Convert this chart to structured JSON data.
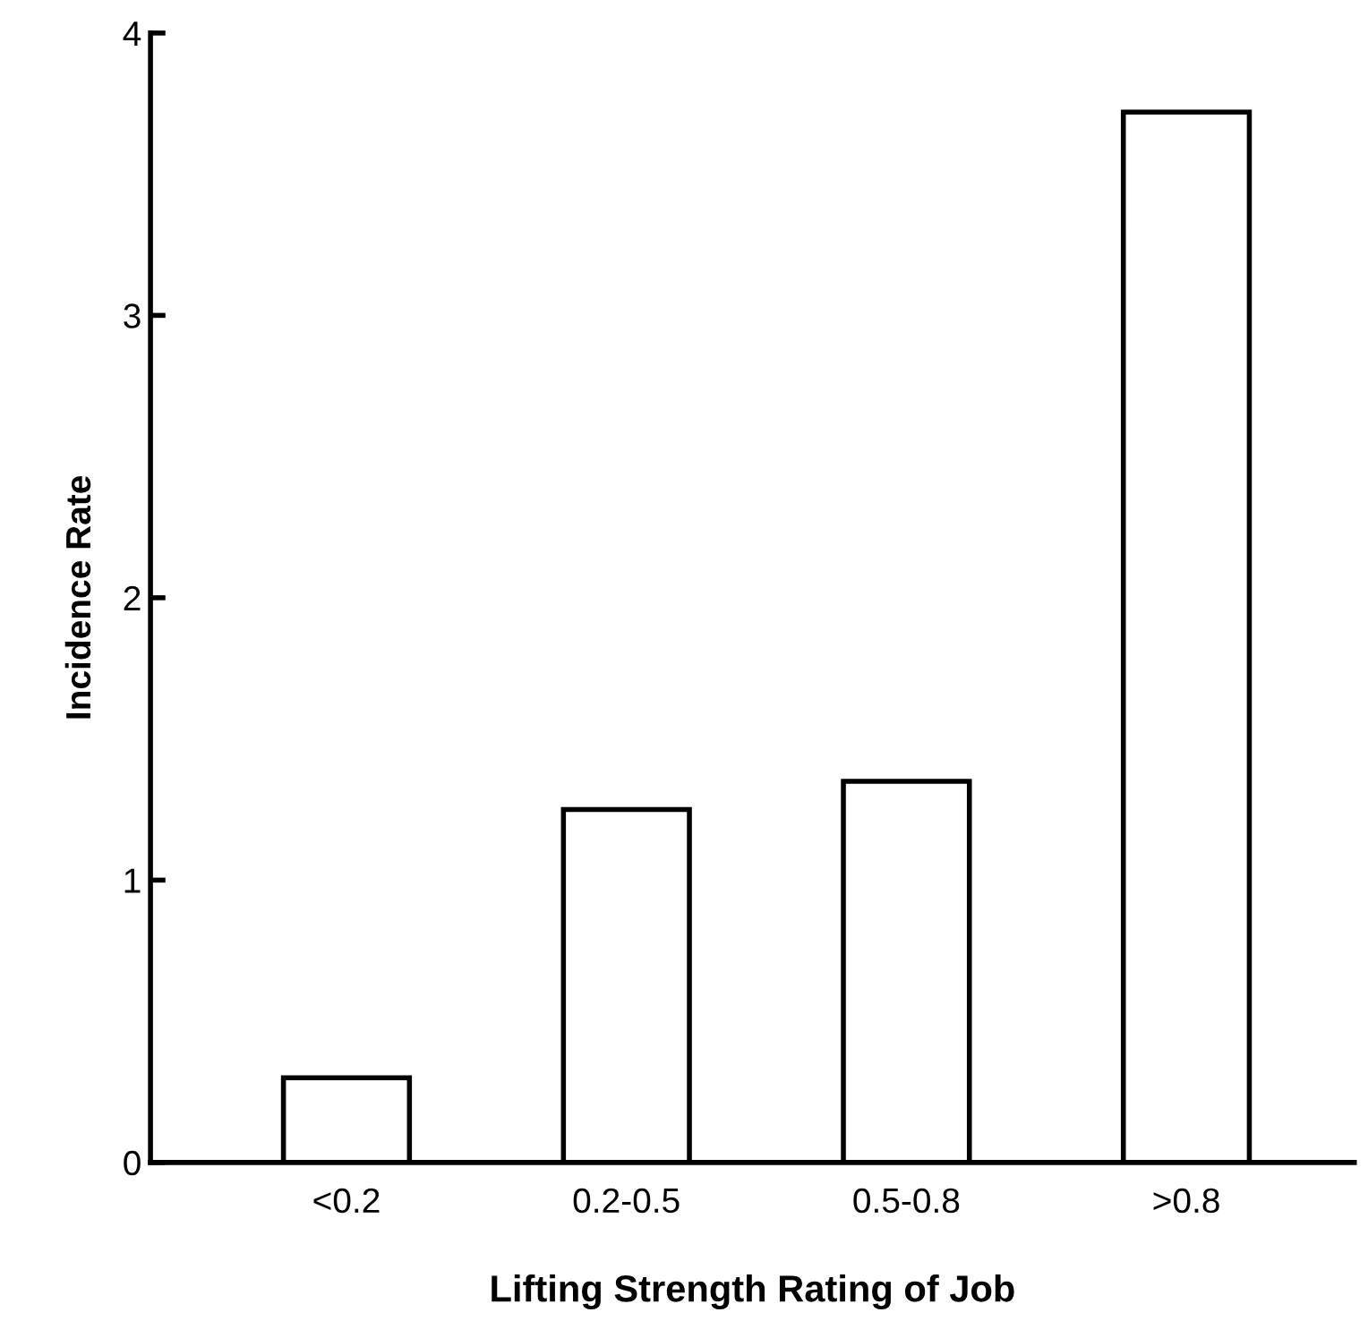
{
  "chart_data": {
    "type": "bar",
    "xlabel": "Lifting Strength Rating of Job",
    "ylabel": "Incidence Rate",
    "categories": [
      "<0.2",
      "0.2-0.5",
      "0.5-0.8",
      ">0.8"
    ],
    "values": [
      0.3,
      1.25,
      1.35,
      3.72
    ],
    "color": "#ffffff",
    "ylim": [
      0,
      4
    ],
    "yticks": [
      0,
      1,
      2,
      3,
      4
    ],
    "grid": false,
    "legend": false
  }
}
